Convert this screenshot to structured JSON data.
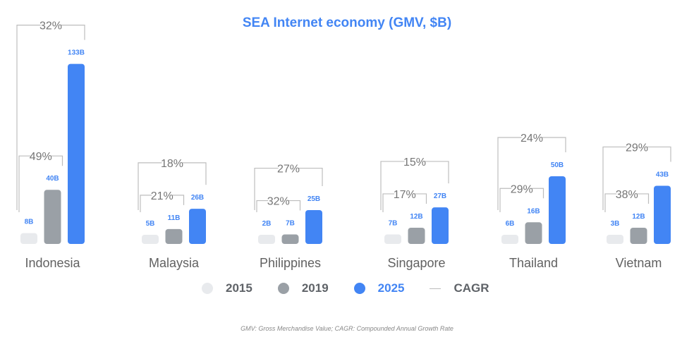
{
  "chart_data": {
    "type": "bar",
    "title": "SEA Internet economy (GMV, $B)",
    "categories": [
      "Indonesia",
      "Malaysia",
      "Philippines",
      "Singapore",
      "Thailand",
      "Vietnam"
    ],
    "series": [
      {
        "name": "2015",
        "color": "#e8eaed",
        "values": [
          8,
          5,
          2,
          7,
          6,
          3
        ],
        "labels": [
          "8B",
          "5B",
          "2B",
          "7B",
          "6B",
          "3B"
        ]
      },
      {
        "name": "2019",
        "color": "#9aa0a6",
        "values": [
          40,
          11,
          7,
          12,
          16,
          12
        ],
        "labels": [
          "40B",
          "11B",
          "7B",
          "12B",
          "16B",
          "12B"
        ]
      },
      {
        "name": "2025",
        "color": "#4285f4",
        "values": [
          133,
          26,
          25,
          27,
          50,
          43
        ],
        "labels": [
          "133B",
          "26B",
          "25B",
          "27B",
          "50B",
          "43B"
        ]
      }
    ],
    "cagr_2015_2019": [
      "49%",
      "21%",
      "32%",
      "17%",
      "29%",
      "38%"
    ],
    "cagr_2015_2025": [
      "32%",
      "18%",
      "27%",
      "15%",
      "24%",
      "29%"
    ],
    "legend": [
      {
        "label": "2015",
        "color": "#e8eaed",
        "kind": "dot"
      },
      {
        "label": "2019",
        "color": "#9aa0a6",
        "kind": "dot"
      },
      {
        "label": "2025",
        "color": "#4285f4",
        "kind": "dot"
      },
      {
        "label": "CAGR",
        "color": "#bbbbbb",
        "kind": "line"
      }
    ],
    "legend_position": "bottom",
    "footnote": "GMV: Gross Merchandise Value; CAGR: Compounded Annual Growth Rate"
  }
}
